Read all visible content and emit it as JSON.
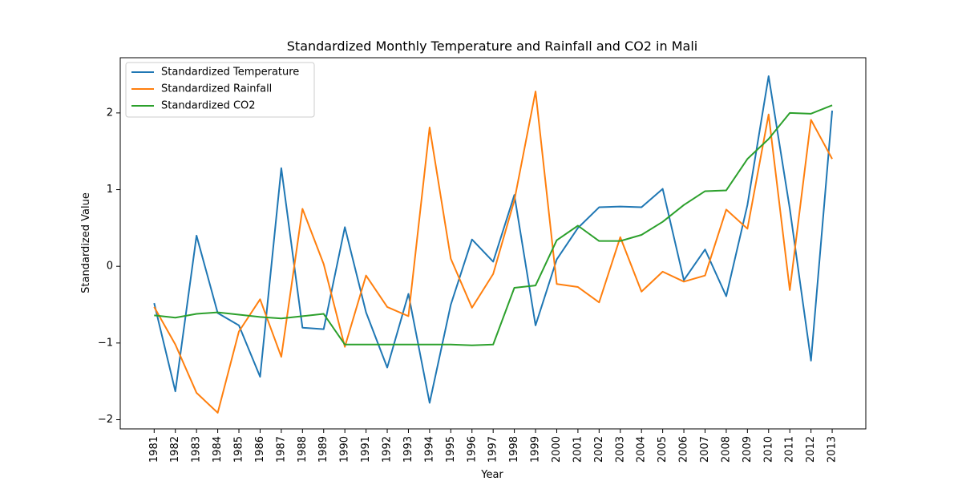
{
  "chart_data": {
    "type": "line",
    "title": "Standardized Monthly Temperature and Rainfall and CO2 in Mali",
    "xlabel": "Year",
    "ylabel": "Standardized Value",
    "ylim": [
      -2.12,
      2.72
    ],
    "yticks": [
      -2,
      -1,
      0,
      1,
      2
    ],
    "ytick_labels": [
      "−2",
      "−1",
      "0",
      "1",
      "2"
    ],
    "grid": false,
    "legend_position": "top-left",
    "categories": [
      "1981",
      "1982",
      "1983",
      "1984",
      "1985",
      "1986",
      "1987",
      "1988",
      "1989",
      "1990",
      "1991",
      "1992",
      "1993",
      "1994",
      "1995",
      "1996",
      "1997",
      "1998",
      "1999",
      "2000",
      "2001",
      "2002",
      "2003",
      "2004",
      "2005",
      "2006",
      "2007",
      "2008",
      "2009",
      "2010",
      "2011",
      "2012",
      "2013"
    ],
    "series": [
      {
        "name": "Standardized Temperature",
        "color": "#1f77b4",
        "values": [
          -0.48,
          -1.63,
          0.4,
          -0.61,
          -0.77,
          -1.44,
          1.28,
          -0.8,
          -0.82,
          0.51,
          -0.6,
          -1.32,
          -0.36,
          -1.78,
          -0.5,
          0.35,
          0.06,
          0.93,
          -0.77,
          0.09,
          0.5,
          0.77,
          0.78,
          0.77,
          1.01,
          -0.18,
          0.22,
          -0.39,
          0.8,
          2.48,
          0.75,
          -1.23,
          2.03
        ]
      },
      {
        "name": "Standardized Rainfall",
        "color": "#ff7f0e",
        "values": [
          -0.53,
          -1.02,
          -1.65,
          -1.91,
          -0.85,
          -0.43,
          -1.18,
          0.75,
          0.03,
          -1.05,
          -0.12,
          -0.53,
          -0.65,
          1.81,
          0.1,
          -0.54,
          -0.1,
          0.86,
          2.28,
          -0.23,
          -0.27,
          -0.47,
          0.38,
          -0.33,
          -0.07,
          -0.2,
          -0.12,
          0.74,
          0.49,
          1.98,
          -0.31,
          1.91,
          1.4
        ]
      },
      {
        "name": "Standardized CO2",
        "color": "#2ca02c",
        "values": [
          -0.64,
          -0.67,
          -0.62,
          -0.6,
          -0.63,
          -0.66,
          -0.68,
          -0.65,
          -0.62,
          -1.02,
          -1.02,
          -1.02,
          -1.02,
          -1.02,
          -1.02,
          -1.03,
          -1.02,
          -0.28,
          -0.25,
          0.34,
          0.53,
          0.33,
          0.33,
          0.41,
          0.58,
          0.8,
          0.98,
          0.99,
          1.4,
          1.66,
          2.0,
          1.99,
          2.1
        ]
      }
    ]
  }
}
